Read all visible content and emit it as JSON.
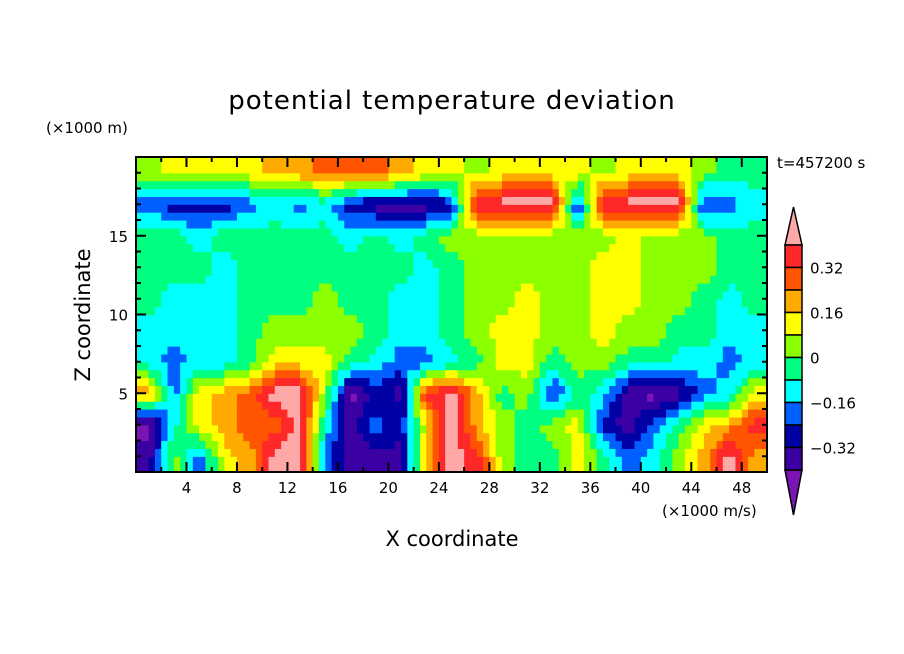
{
  "chart_data": {
    "type": "heatmap",
    "title": "potential temperature deviation",
    "xlabel": "X coordinate",
    "ylabel": "Z coordinate",
    "x_unit": "(×1000 m/s)",
    "y_unit": "(×1000 m)",
    "time_label": "t=457200 s",
    "xlim": [
      0,
      50
    ],
    "ylim": [
      0,
      20
    ],
    "x_ticks": [
      4,
      8,
      12,
      16,
      20,
      24,
      28,
      32,
      36,
      40,
      44,
      48
    ],
    "y_ticks": [
      5,
      10,
      15
    ],
    "x_centers_step": 2,
    "z_centers": [
      19,
      17,
      15,
      13,
      11,
      9,
      7,
      5,
      3,
      1
    ],
    "values": [
      [
        0.04,
        0.12,
        0.12,
        0.12,
        0.12,
        0.2,
        0.2,
        0.28,
        0.28,
        0.28,
        0.2,
        0.12,
        0.12,
        0.04,
        0.12,
        0.12,
        0.12,
        0.12,
        0.04,
        0.12,
        0.12,
        0.12,
        0.04,
        -0.04,
        -0.04
      ],
      [
        -0.2,
        -0.28,
        -0.28,
        -0.28,
        -0.2,
        -0.12,
        -0.2,
        -0.12,
        -0.28,
        -0.36,
        -0.36,
        -0.36,
        -0.28,
        0.44,
        0.44,
        0.44,
        0.44,
        -0.28,
        0.44,
        0.44,
        0.44,
        0.44,
        -0.28,
        -0.2,
        -0.12
      ],
      [
        -0.04,
        -0.04,
        -0.12,
        -0.04,
        -0.04,
        -0.04,
        -0.04,
        -0.04,
        -0.12,
        -0.04,
        -0.12,
        -0.04,
        0.04,
        0.04,
        0.04,
        0.04,
        0.04,
        0.04,
        0.04,
        0.12,
        0.04,
        0.04,
        0.04,
        -0.04,
        -0.04
      ],
      [
        -0.04,
        -0.04,
        -0.04,
        -0.12,
        -0.04,
        -0.04,
        -0.04,
        -0.04,
        -0.04,
        -0.04,
        -0.04,
        -0.12,
        -0.04,
        0.04,
        0.04,
        0.04,
        0.04,
        0.04,
        0.12,
        0.12,
        0.04,
        0.04,
        0.04,
        -0.04,
        -0.04
      ],
      [
        -0.04,
        -0.12,
        -0.12,
        -0.12,
        -0.04,
        -0.04,
        -0.04,
        0.04,
        -0.04,
        -0.04,
        -0.12,
        -0.12,
        -0.04,
        0.04,
        0.04,
        0.12,
        0.04,
        0.04,
        0.12,
        0.12,
        0.04,
        0.04,
        -0.04,
        -0.12,
        -0.04
      ],
      [
        -0.12,
        -0.12,
        -0.12,
        -0.12,
        -0.04,
        0.04,
        0.04,
        0.04,
        0.04,
        -0.04,
        -0.12,
        -0.12,
        -0.04,
        0.04,
        0.12,
        0.12,
        0.04,
        0.04,
        0.12,
        0.04,
        0.04,
        -0.04,
        -0.04,
        -0.12,
        -0.12
      ],
      [
        -0.12,
        -0.2,
        -0.12,
        -0.12,
        -0.04,
        0.12,
        0.12,
        0.12,
        -0.04,
        -0.12,
        -0.2,
        -0.2,
        -0.12,
        -0.04,
        0.12,
        0.12,
        -0.04,
        0.04,
        0.04,
        -0.04,
        -0.04,
        -0.12,
        -0.12,
        -0.2,
        -0.12
      ],
      [
        0.2,
        -0.2,
        0.12,
        0.2,
        0.28,
        0.44,
        0.44,
        0.04,
        -0.44,
        -0.28,
        -0.36,
        0.36,
        0.44,
        0.2,
        -0.04,
        0.04,
        -0.28,
        -0.04,
        -0.12,
        -0.36,
        -0.44,
        -0.36,
        -0.2,
        -0.12,
        0.12
      ],
      [
        -0.44,
        -0.12,
        0.12,
        0.2,
        0.28,
        0.28,
        0.44,
        -0.12,
        -0.36,
        -0.2,
        -0.28,
        0.12,
        0.44,
        0.2,
        0.04,
        -0.04,
        0.04,
        0.12,
        -0.28,
        -0.36,
        -0.2,
        -0.04,
        0.12,
        0.2,
        0.36
      ],
      [
        -0.36,
        0.04,
        -0.2,
        0.12,
        0.2,
        0.44,
        0.44,
        -0.2,
        -0.36,
        -0.36,
        -0.36,
        0.2,
        0.44,
        0.36,
        0.04,
        -0.04,
        -0.04,
        0.12,
        -0.04,
        -0.2,
        -0.12,
        0.04,
        0.2,
        0.44,
        0.2
      ]
    ],
    "colorbar": {
      "levels": [
        -0.4,
        -0.32,
        -0.24,
        -0.16,
        -0.08,
        0,
        0.08,
        0.16,
        0.24,
        0.32,
        0.4
      ],
      "labels": [
        "0.32",
        "0.16",
        "0",
        "−0.16",
        "−0.32"
      ],
      "label_values": [
        0.32,
        0.16,
        0,
        -0.16,
        -0.32
      ],
      "colors": [
        "#7a14b4",
        "#3a00a4",
        "#0000a4",
        "#0060ff",
        "#00ffff",
        "#00ff80",
        "#8cff00",
        "#ffff00",
        "#ffaa00",
        "#ff5500",
        "#ff2828",
        "#ffa8a8"
      ]
    }
  }
}
